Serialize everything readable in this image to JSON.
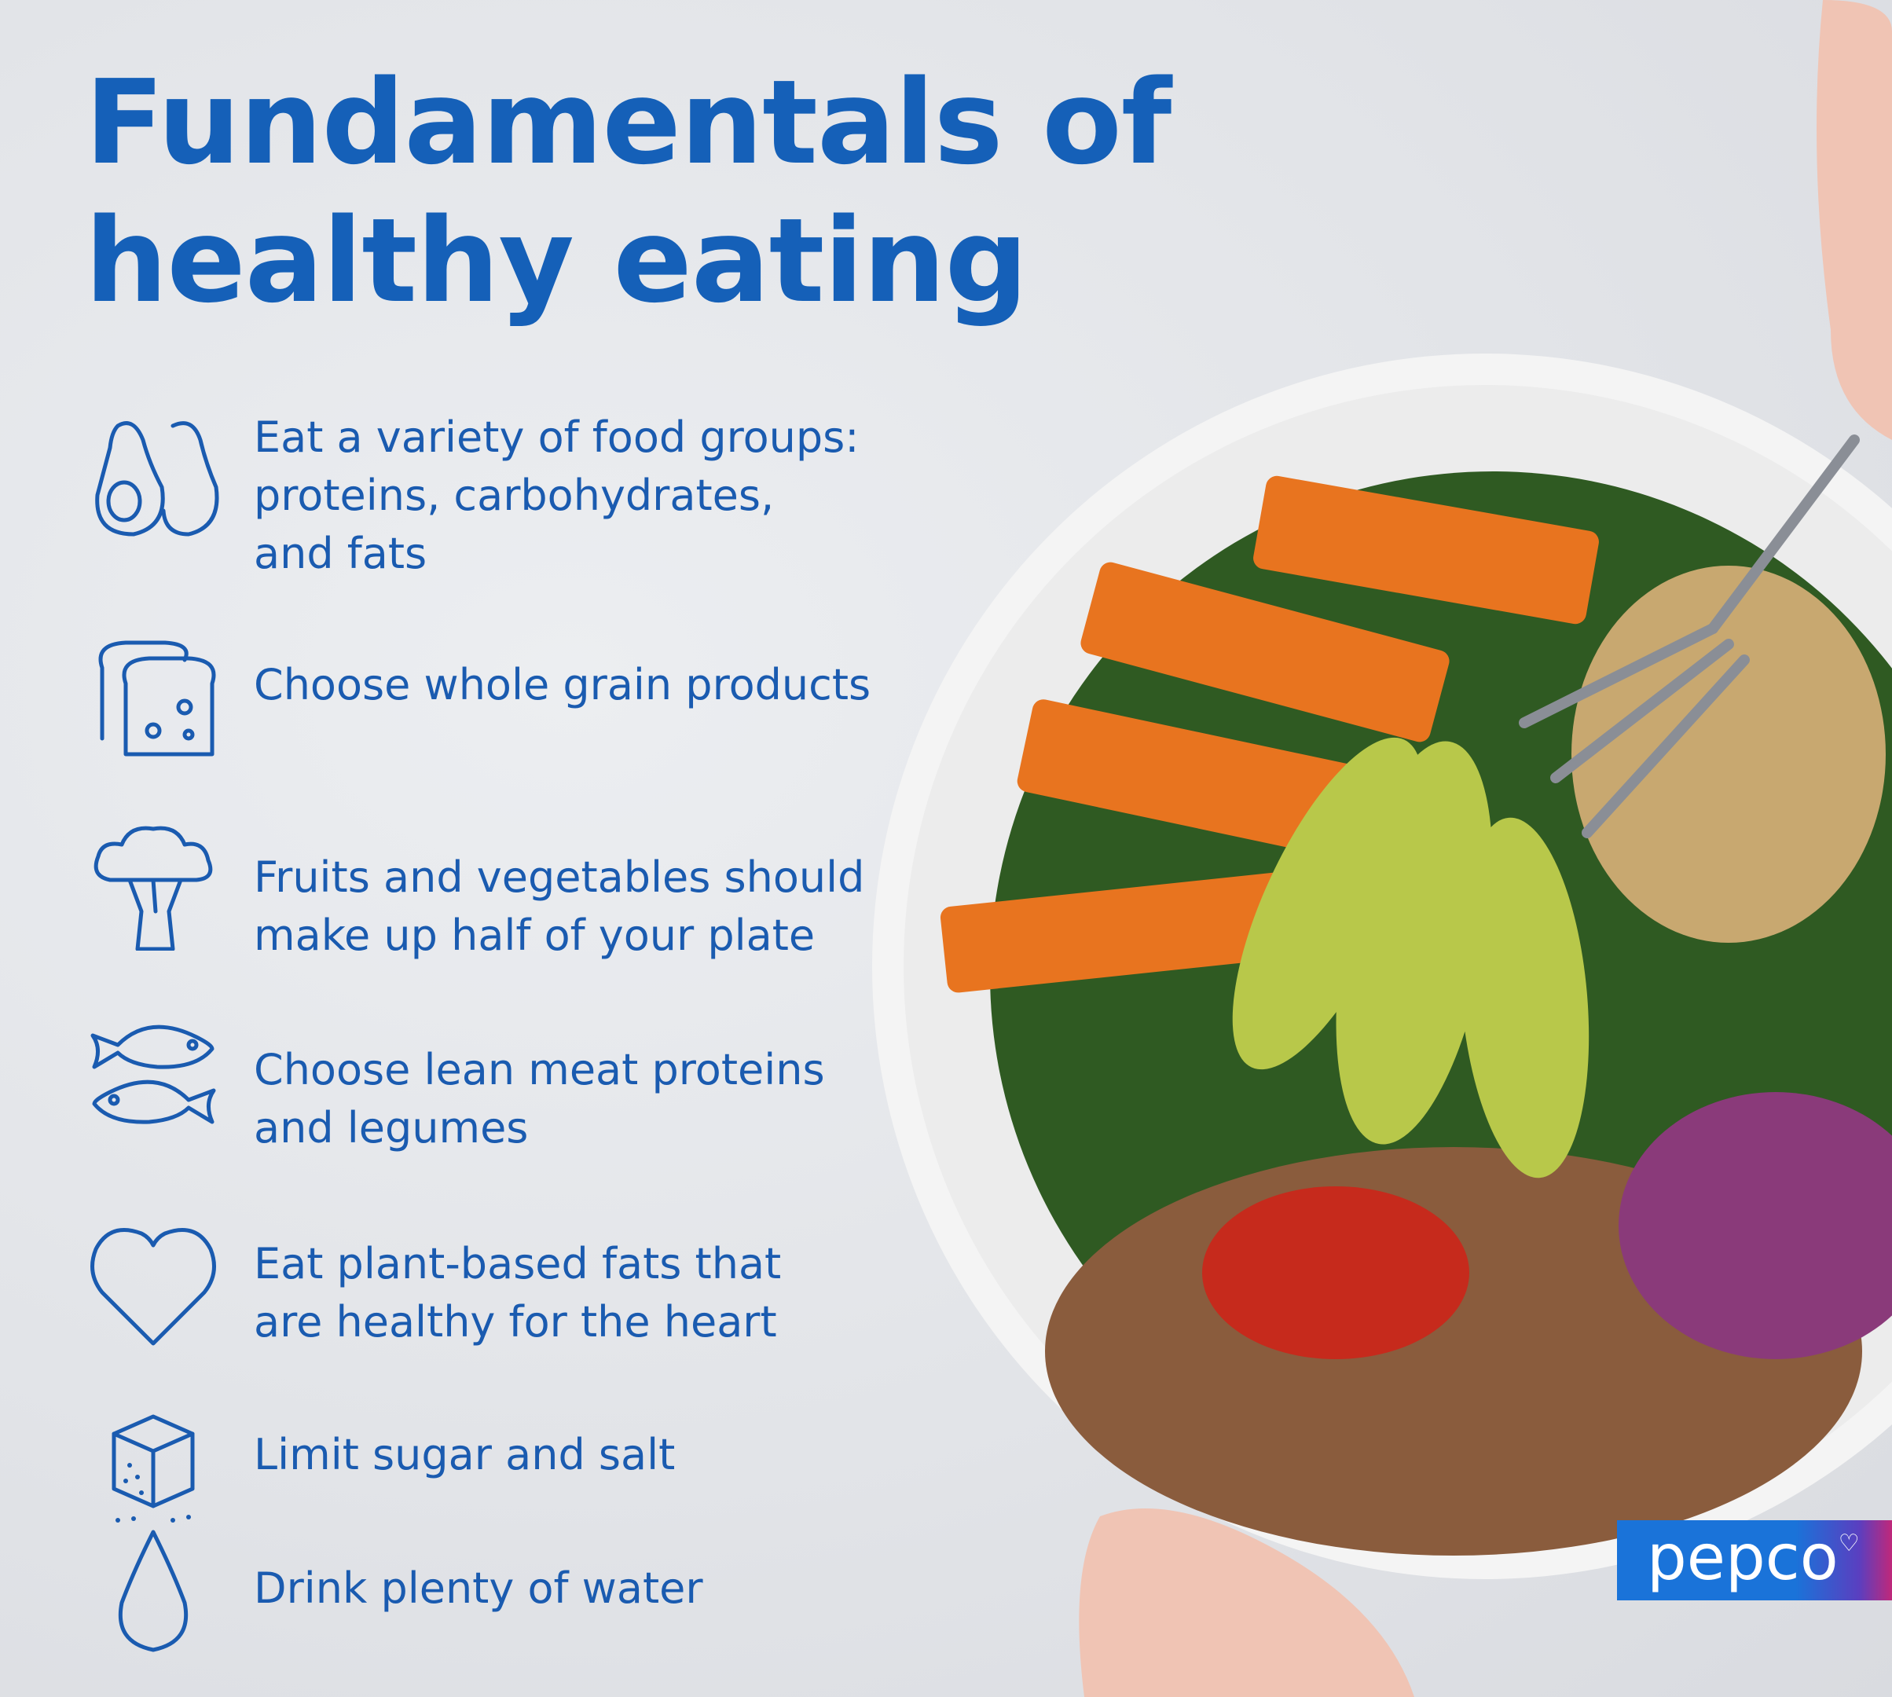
{
  "title": {
    "line1": "Fundamentals of",
    "line2": "healthy eating"
  },
  "items": [
    {
      "icon": "avocado-icon",
      "text": "Eat a variety of food groups:\nproteins, carbohydrates,\nand fats"
    },
    {
      "icon": "bread-icon",
      "text": "Choose whole grain products"
    },
    {
      "icon": "broccoli-icon",
      "text": "Fruits and vegetables should\nmake up half of your plate"
    },
    {
      "icon": "fish-icon",
      "text": "Choose lean meat proteins\nand legumes"
    },
    {
      "icon": "heart-icon",
      "text": "Eat plant-based fats that\nare healthy for the heart"
    },
    {
      "icon": "sugar-cube-icon",
      "text": "Limit sugar and salt"
    },
    {
      "icon": "water-drop-icon",
      "text": "Drink plenty of water"
    }
  ],
  "logo": {
    "text": "pepco"
  },
  "colors": {
    "title": "#1560b8",
    "text": "#1a5bb0",
    "logo_bg": "#1a73d9",
    "background": "#e4e6ea"
  }
}
